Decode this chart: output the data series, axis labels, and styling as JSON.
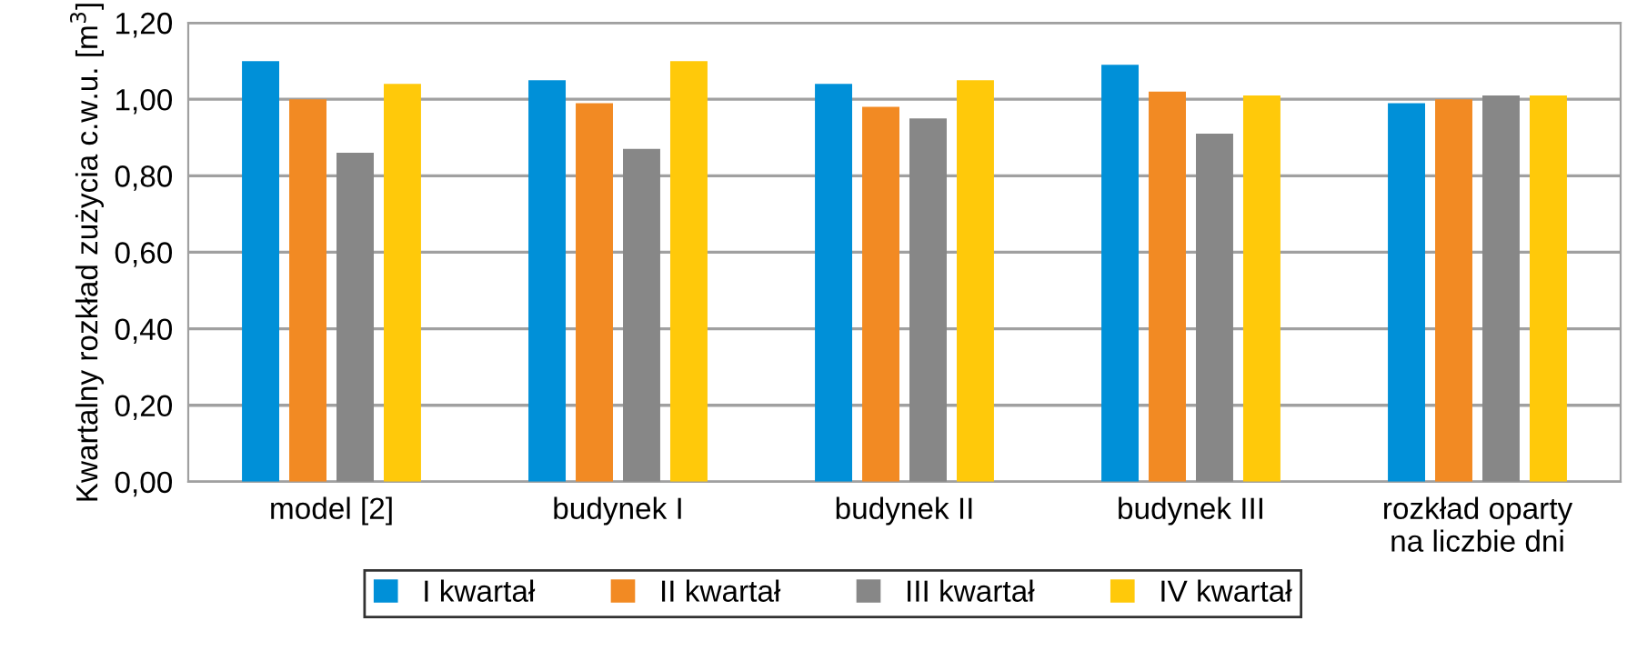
{
  "chart_data": {
    "type": "bar",
    "ylabel": "Kwartalny rozkład zużycia c.w.u. [m$^{3}$]",
    "categories": [
      "model [2]",
      "budynek I",
      "budynek II",
      "budynek III",
      "rozkład oparty\nna liczbie dni"
    ],
    "series": [
      {
        "name": "I kwartał",
        "color": "#0090d8",
        "values": [
          1.1,
          1.05,
          1.04,
          1.09,
          0.99
        ]
      },
      {
        "name": "II kwartał",
        "color": "#f28a23",
        "values": [
          1.0,
          0.99,
          0.98,
          1.02,
          1.0
        ]
      },
      {
        "name": "III kwartał",
        "color": "#878787",
        "values": [
          0.86,
          0.87,
          0.95,
          0.91,
          1.01
        ]
      },
      {
        "name": "IV kwartał",
        "color": "#ffc90a",
        "values": [
          1.04,
          1.1,
          1.05,
          1.01,
          1.01
        ]
      }
    ],
    "ylim": [
      0,
      1.2
    ],
    "yticks": [
      {
        "value": 0,
        "label": "0,00"
      },
      {
        "value": 0.2,
        "label": "0,20"
      },
      {
        "value": 0.4,
        "label": "0,40"
      },
      {
        "value": 0.6,
        "label": "0,60"
      },
      {
        "value": 0.8,
        "label": "0,80"
      },
      {
        "value": 1.0,
        "label": "1,00"
      },
      {
        "value": 1.2,
        "label": "1,20"
      }
    ],
    "grid": "y",
    "legend": "bottom"
  }
}
